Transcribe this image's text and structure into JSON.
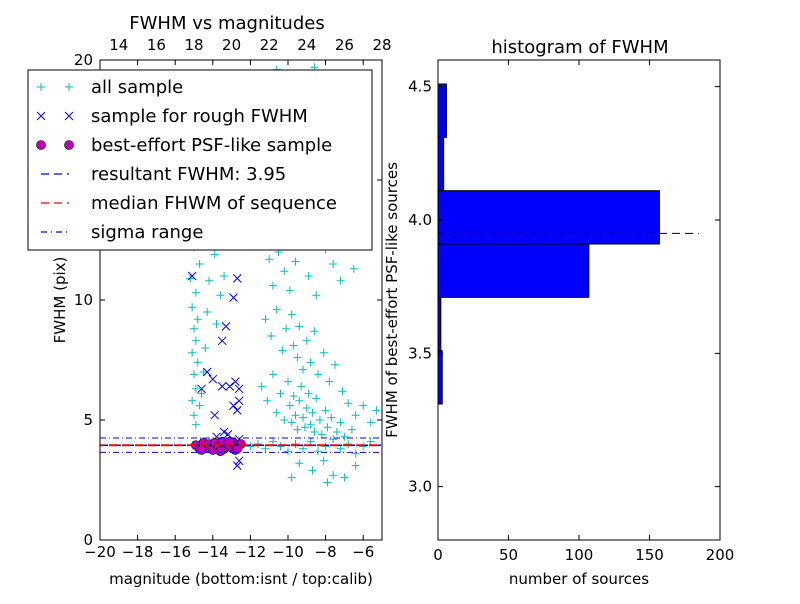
{
  "chart_data": [
    {
      "type": "scatter",
      "title": "FWHM vs magnitudes",
      "xlabel": "magnitude (bottom:isnt / top:calib)",
      "ylabel": "FWHM (pix)",
      "xlim": [
        -20,
        -5
      ],
      "ylim": [
        0,
        20
      ],
      "top_axis_offset": 33,
      "xticks": [
        "−20",
        "−18",
        "−16",
        "−14",
        "−12",
        "−10",
        "−8",
        "−6"
      ],
      "xtick_values": [
        -20,
        -18,
        -16,
        -14,
        -12,
        -10,
        -8,
        -6
      ],
      "top_xticks": [
        "14",
        "16",
        "18",
        "20",
        "22",
        "24",
        "26",
        "28"
      ],
      "top_xtick_values": [
        14,
        16,
        18,
        20,
        22,
        24,
        26,
        28
      ],
      "yticks": [
        "0",
        "5",
        "10",
        "15",
        "20"
      ],
      "ytick_values": [
        0,
        5,
        10,
        15,
        20
      ],
      "legend_position": "top-left",
      "legend": [
        {
          "label": "all sample",
          "marker": "plus",
          "color": "#00bfbf"
        },
        {
          "label": "sample for rough FWHM",
          "marker": "x",
          "color": "#0000ff"
        },
        {
          "label": "best-effort PSF-like sample",
          "marker": "circle",
          "color": "#bf00bf"
        },
        {
          "label": "resultant FWHM: 3.95",
          "marker": "dashed",
          "color": "#0000ff"
        },
        {
          "label": "median FHWM of sequence",
          "marker": "dashed",
          "color": "#ff0000"
        },
        {
          "label": "sigma range",
          "marker": "dashdot",
          "color": "#0000ff"
        }
      ],
      "resultant_fwhm": 3.95,
      "median_fwhm": 3.95,
      "sigma_range": [
        3.65,
        4.25
      ],
      "series": [
        {
          "name": "all sample",
          "color": "#00bfbf",
          "points": [
            [
              -15.0,
              5.2
            ],
            [
              -15.1,
              5.8
            ],
            [
              -14.9,
              6.3
            ],
            [
              -15.0,
              6.9
            ],
            [
              -14.8,
              7.4
            ],
            [
              -15.1,
              7.8
            ],
            [
              -14.9,
              8.3
            ],
            [
              -15.0,
              8.8
            ],
            [
              -14.8,
              9.2
            ],
            [
              -15.1,
              9.7
            ],
            [
              -14.9,
              10.3
            ],
            [
              -15.2,
              10.9
            ],
            [
              -14.7,
              11.5
            ],
            [
              -15.0,
              12.2
            ],
            [
              -14.6,
              13.0
            ],
            [
              -14.9,
              4.8
            ],
            [
              -14.7,
              5.6
            ],
            [
              -14.6,
              6.1
            ],
            [
              -14.5,
              7.0
            ],
            [
              -14.4,
              8.0
            ],
            [
              -14.3,
              9.5
            ],
            [
              -14.2,
              10.8
            ],
            [
              -13.9,
              11.9
            ],
            [
              -14.0,
              12.5
            ],
            [
              -13.5,
              13.4
            ],
            [
              -13.8,
              9.0
            ],
            [
              -13.6,
              10.2
            ],
            [
              -13.4,
              11.0
            ],
            [
              -13.2,
              12.3
            ],
            [
              -11.5,
              12.8
            ],
            [
              -11.0,
              11.7
            ],
            [
              -10.8,
              10.6
            ],
            [
              -10.5,
              12.0
            ],
            [
              -10.2,
              11.2
            ],
            [
              -9.9,
              10.4
            ],
            [
              -9.6,
              11.6
            ],
            [
              -9.3,
              12.4
            ],
            [
              -8.9,
              11.0
            ],
            [
              -8.5,
              10.2
            ],
            [
              -8.0,
              12.1
            ],
            [
              -7.6,
              11.5
            ],
            [
              -7.2,
              10.8
            ],
            [
              -6.5,
              11.3
            ],
            [
              -11.2,
              9.2
            ],
            [
              -10.9,
              8.5
            ],
            [
              -10.6,
              9.6
            ],
            [
              -10.3,
              7.9
            ],
            [
              -10.1,
              8.8
            ],
            [
              -9.8,
              9.4
            ],
            [
              -9.7,
              8.1
            ],
            [
              -9.5,
              7.6
            ],
            [
              -9.4,
              8.9
            ],
            [
              -9.2,
              7.1
            ],
            [
              -9.0,
              8.3
            ],
            [
              -8.8,
              7.4
            ],
            [
              -8.6,
              8.7
            ],
            [
              -8.4,
              6.9
            ],
            [
              -8.1,
              7.8
            ],
            [
              -7.8,
              6.6
            ],
            [
              -7.5,
              7.3
            ],
            [
              -7.1,
              6.2
            ],
            [
              -6.8,
              5.7
            ],
            [
              -6.4,
              5.2
            ],
            [
              -6.0,
              5.6
            ],
            [
              -5.6,
              4.9
            ],
            [
              -5.3,
              5.4
            ],
            [
              -11.4,
              6.4
            ],
            [
              -11.1,
              5.8
            ],
            [
              -10.8,
              6.9
            ],
            [
              -10.6,
              5.3
            ],
            [
              -10.4,
              6.1
            ],
            [
              -10.2,
              5.0
            ],
            [
              -10.0,
              6.6
            ],
            [
              -9.9,
              5.6
            ],
            [
              -9.8,
              4.9
            ],
            [
              -9.7,
              6.0
            ],
            [
              -9.6,
              5.2
            ],
            [
              -9.5,
              4.6
            ],
            [
              -9.4,
              5.8
            ],
            [
              -9.3,
              6.4
            ],
            [
              -9.2,
              5.1
            ],
            [
              -9.1,
              4.7
            ],
            [
              -9.0,
              5.5
            ],
            [
              -8.9,
              6.1
            ],
            [
              -8.8,
              4.8
            ],
            [
              -8.7,
              5.3
            ],
            [
              -8.6,
              4.5
            ],
            [
              -8.5,
              5.9
            ],
            [
              -8.3,
              5.0
            ],
            [
              -8.2,
              4.4
            ],
            [
              -8.0,
              5.4
            ],
            [
              -7.9,
              4.7
            ],
            [
              -7.7,
              5.1
            ],
            [
              -7.4,
              4.5
            ],
            [
              -7.2,
              4.9
            ],
            [
              -7.0,
              4.3
            ],
            [
              -6.6,
              4.6
            ],
            [
              -12.0,
              3.9
            ],
            [
              -11.6,
              4.0
            ],
            [
              -11.2,
              3.8
            ],
            [
              -10.8,
              4.1
            ],
            [
              -10.4,
              3.9
            ],
            [
              -10.0,
              3.7
            ],
            [
              -9.6,
              4.0
            ],
            [
              -9.2,
              3.8
            ],
            [
              -8.8,
              4.1
            ],
            [
              -8.4,
              3.7
            ],
            [
              -8.0,
              3.9
            ],
            [
              -7.6,
              4.2
            ],
            [
              -7.2,
              3.8
            ],
            [
              -6.8,
              4.0
            ],
            [
              -6.4,
              3.6
            ],
            [
              -6.0,
              3.9
            ],
            [
              -5.6,
              4.1
            ],
            [
              -9.4,
              3.2
            ],
            [
              -8.7,
              2.9
            ],
            [
              -8.1,
              3.3
            ],
            [
              -7.6,
              2.7
            ],
            [
              -7.0,
              2.6
            ],
            [
              -6.4,
              3.1
            ],
            [
              -9.8,
              2.6
            ],
            [
              -7.9,
              2.4
            ],
            [
              -14.2,
              19.4
            ],
            [
              -10.6,
              19.6
            ],
            [
              -9.6,
              19.3
            ],
            [
              -8.6,
              19.7
            ],
            [
              -9.3,
              18.9
            ]
          ]
        },
        {
          "name": "sample for rough FWHM",
          "color": "#0000ff",
          "points": [
            [
              -15.1,
              11.0
            ],
            [
              -12.7,
              10.9
            ],
            [
              -12.9,
              10.1
            ],
            [
              -13.3,
              8.9
            ],
            [
              -13.5,
              8.3
            ],
            [
              -14.3,
              7.0
            ],
            [
              -14.0,
              6.7
            ],
            [
              -14.6,
              6.3
            ],
            [
              -13.5,
              6.4
            ],
            [
              -13.1,
              6.4
            ],
            [
              -12.8,
              6.6
            ],
            [
              -12.6,
              6.3
            ],
            [
              -12.9,
              5.6
            ],
            [
              -12.7,
              5.4
            ],
            [
              -12.6,
              5.8
            ],
            [
              -13.9,
              5.2
            ],
            [
              -13.8,
              4.3
            ],
            [
              -13.4,
              4.5
            ],
            [
              -13.2,
              4.4
            ],
            [
              -12.6,
              4.2
            ],
            [
              -12.6,
              3.3
            ],
            [
              -12.7,
              3.1
            ]
          ]
        },
        {
          "name": "best-effort PSF-like sample",
          "color": "#bf00bf",
          "points": [
            [
              -14.9,
              3.95
            ],
            [
              -14.7,
              3.8
            ],
            [
              -14.5,
              4.05
            ],
            [
              -14.3,
              3.85
            ],
            [
              -14.2,
              4.0
            ],
            [
              -14.0,
              3.75
            ],
            [
              -13.9,
              4.05
            ],
            [
              -13.7,
              3.9
            ],
            [
              -13.5,
              4.1
            ],
            [
              -13.4,
              3.8
            ],
            [
              -13.2,
              4.0
            ],
            [
              -13.0,
              3.85
            ],
            [
              -12.9,
              4.05
            ],
            [
              -12.8,
              3.75
            ],
            [
              -12.6,
              3.95
            ],
            [
              -12.5,
              4.0
            ],
            [
              -14.6,
              3.75
            ],
            [
              -13.6,
              3.7
            ],
            [
              -13.1,
              4.1
            ],
            [
              -12.7,
              3.8
            ]
          ]
        }
      ]
    },
    {
      "type": "bar",
      "orientation": "horizontal",
      "title": "histogram of FWHM",
      "xlabel": "number of sources",
      "ylabel": "FWHM of best-effort PSF-like sources",
      "xlim": [
        0,
        200
      ],
      "ylim": [
        2.8,
        4.6
      ],
      "xticks": [
        "0",
        "50",
        "100",
        "150",
        "200"
      ],
      "xtick_values": [
        0,
        50,
        100,
        150,
        200
      ],
      "yticks": [
        "3.0",
        "3.5",
        "4.0",
        "4.5"
      ],
      "ytick_values": [
        3.0,
        3.5,
        4.0,
        4.5
      ],
      "bins": [
        [
          3.31,
          3.51
        ],
        [
          3.51,
          3.71
        ],
        [
          3.71,
          3.91
        ],
        [
          3.91,
          4.11
        ],
        [
          4.11,
          4.31
        ],
        [
          4.31,
          4.51
        ]
      ],
      "values": [
        3,
        2,
        107,
        157,
        4,
        6
      ],
      "bar_color": "#0000ff",
      "reference_line": {
        "y": 3.95,
        "x_range": [
          0,
          185
        ],
        "style": "dashed",
        "color": "#000000"
      }
    }
  ]
}
